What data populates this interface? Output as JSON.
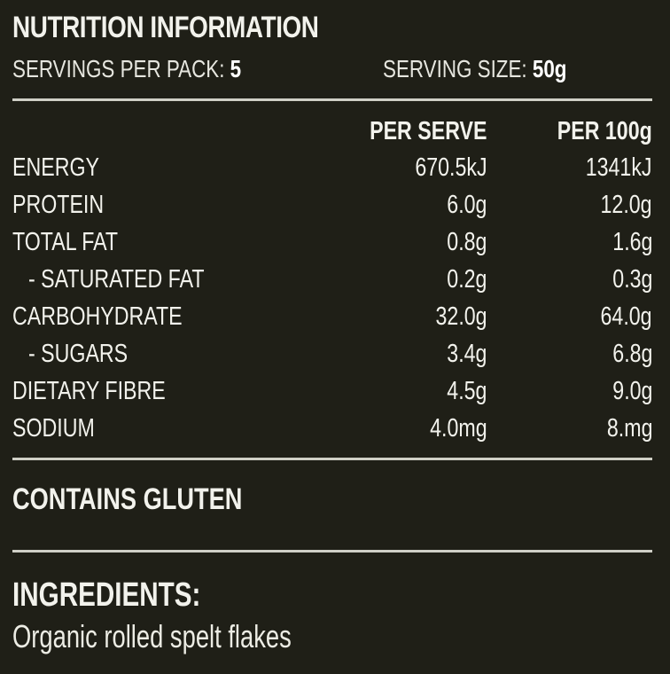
{
  "header": {
    "title": "NUTRITION INFORMATION",
    "servings_label": "SERVINGS PER PACK:",
    "servings_value": "5",
    "serving_size_label": "SERVING SIZE:",
    "serving_size_value": "50g"
  },
  "table": {
    "columns": [
      "",
      "PER SERVE",
      "PER 100g"
    ],
    "rows": [
      {
        "label": "ENERGY",
        "per_serve": "670.5kJ",
        "per_100g": "1341kJ"
      },
      {
        "label": "PROTEIN",
        "per_serve": "6.0g",
        "per_100g": "12.0g"
      },
      {
        "label": "TOTAL FAT",
        "per_serve": "0.8g",
        "per_100g": "1.6g"
      },
      {
        "label": "- SATURATED FAT",
        "per_serve": "0.2g",
        "per_100g": "0.3g"
      },
      {
        "label": "CARBOHYDRATE",
        "per_serve": "32.0g",
        "per_100g": "64.0g"
      },
      {
        "label": "- SUGARS",
        "per_serve": "3.4g",
        "per_100g": "6.8g"
      },
      {
        "label": "DIETARY FIBRE",
        "per_serve": "4.5g",
        "per_100g": "9.0g"
      },
      {
        "label": "SODIUM",
        "per_serve": "4.0mg",
        "per_100g": "8.mg"
      }
    ]
  },
  "allergen": "CONTAINS GLUTEN",
  "ingredients": {
    "heading": "INGREDIENTS:",
    "text": "Organic rolled spelt flakes"
  },
  "colors": {
    "background": "#1f1f17",
    "text": "#f2f2ec",
    "rule": "#cfcfc6"
  }
}
